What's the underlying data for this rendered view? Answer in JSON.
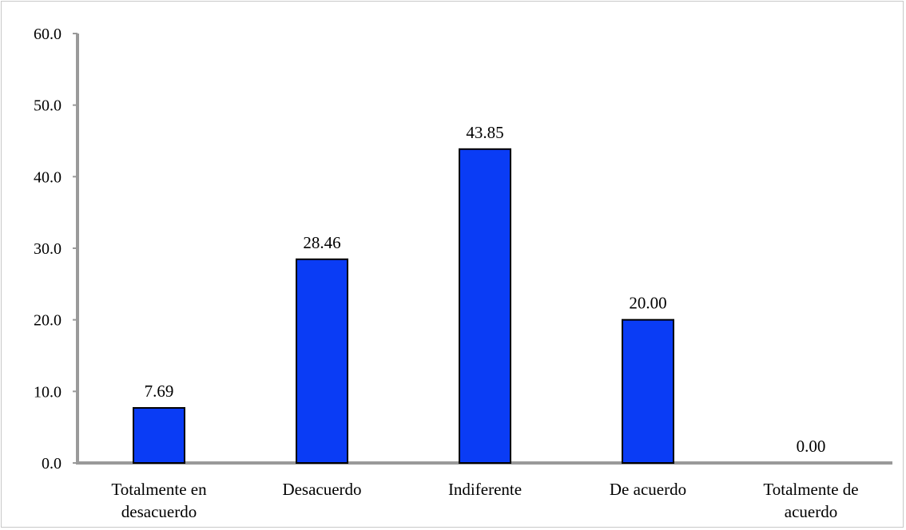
{
  "chart_data": {
    "type": "bar",
    "categories": [
      [
        "Totalmente en",
        "desacuerdo"
      ],
      [
        "Desacuerdo"
      ],
      [
        "Indiferente"
      ],
      [
        "De acuerdo"
      ],
      [
        "Totalmente de",
        "acuerdo"
      ]
    ],
    "values": [
      7.69,
      28.46,
      43.85,
      20.0,
      0.0
    ],
    "value_labels": [
      "7.69",
      "28.46",
      "43.85",
      "20.00",
      "0.00"
    ],
    "y_ticks": [
      "0.0",
      "10.0",
      "20.0",
      "30.0",
      "40.0",
      "50.0",
      "60.0"
    ],
    "ylim": [
      0,
      60
    ],
    "title": "",
    "xlabel": "",
    "ylabel": "",
    "grid": false,
    "legend": "none",
    "bar_color": "#0a3cf5",
    "bar_edge_color": "#000000",
    "axis_color": "#9a9a9a"
  }
}
